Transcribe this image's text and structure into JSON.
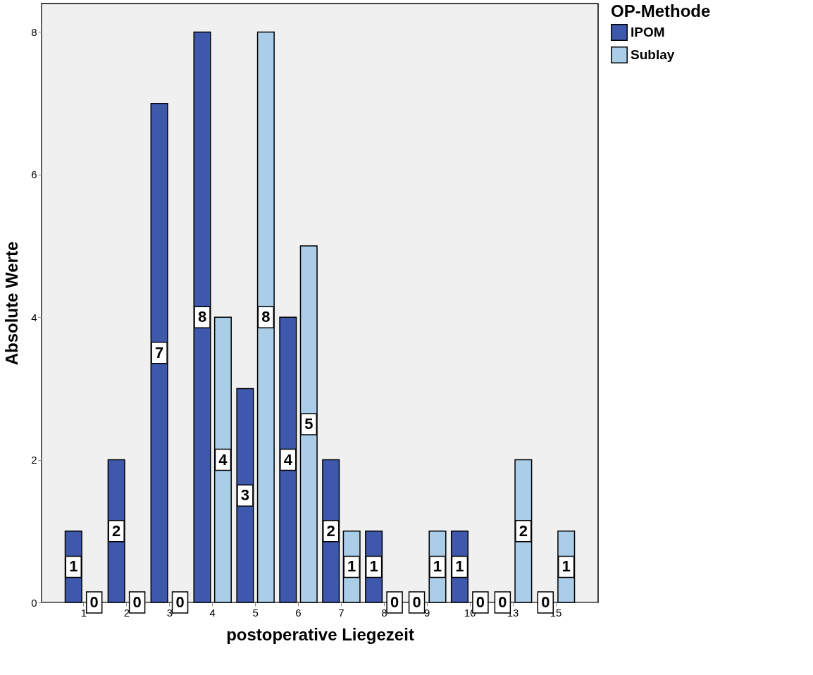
{
  "chart_data": {
    "type": "bar",
    "xlabel": "postoperative Liegezeit",
    "ylabel": "Absolute Werte",
    "legend_title": "OP-Methode",
    "categories": [
      "1",
      "2",
      "3",
      "4",
      "5",
      "6",
      "7",
      "8",
      "9",
      "10",
      "13",
      "15"
    ],
    "series": [
      {
        "name": "IPOM",
        "color": "#3e58ac",
        "values": [
          1,
          2,
          7,
          8,
          3,
          4,
          2,
          1,
          0,
          1,
          0,
          0
        ]
      },
      {
        "name": "Sublay",
        "color": "#aacde8",
        "values": [
          0,
          0,
          0,
          4,
          8,
          5,
          1,
          0,
          1,
          0,
          2,
          1
        ]
      }
    ],
    "ylim": [
      0,
      8.4
    ],
    "yticks": [
      0,
      2,
      4,
      6,
      8
    ],
    "grid": false,
    "legend": "top right",
    "data_labels": true
  }
}
